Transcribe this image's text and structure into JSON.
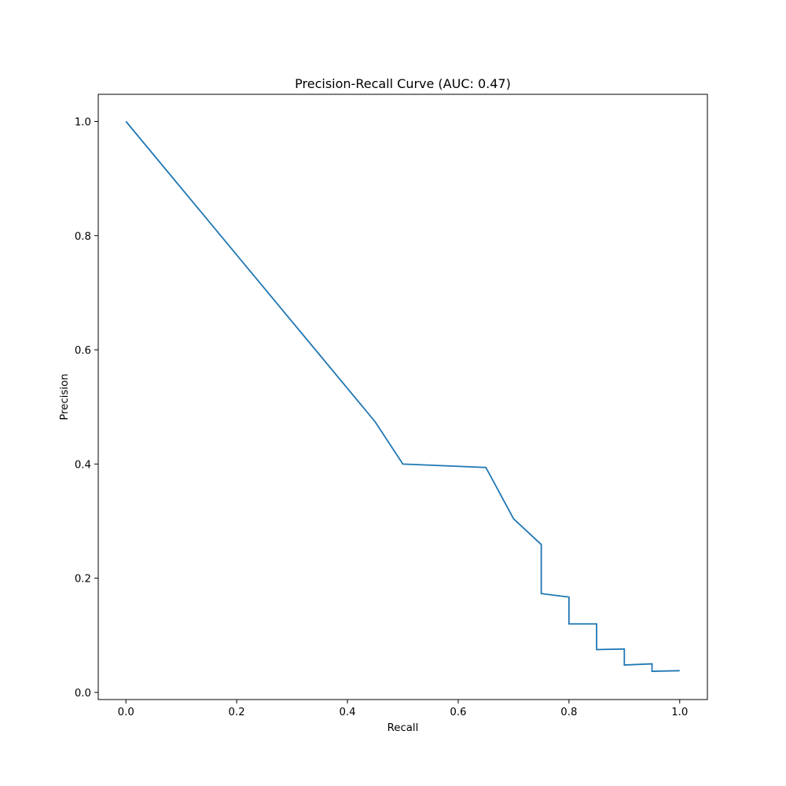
{
  "chart_data": {
    "type": "line",
    "title": "Precision-Recall Curve (AUC: 0.47)",
    "xlabel": "Recall",
    "ylabel": "Precision",
    "xlim": [
      -0.05,
      1.05
    ],
    "ylim": [
      -0.0125,
      1.0475
    ],
    "xticks": [
      0.0,
      0.2,
      0.4,
      0.6,
      0.8,
      1.0
    ],
    "xtick_labels": [
      "0.0",
      "0.2",
      "0.4",
      "0.6",
      "0.8",
      "1.0"
    ],
    "yticks": [
      0.0,
      0.2,
      0.4,
      0.6,
      0.8,
      1.0
    ],
    "ytick_labels": [
      "0.0",
      "0.2",
      "0.4",
      "0.6",
      "0.8",
      "1.0"
    ],
    "grid": false,
    "color": "#1f77b4",
    "series": [
      {
        "x": [
          0.0,
          0.45,
          0.5,
          0.65,
          0.7,
          0.75,
          0.75,
          0.8,
          0.8,
          0.85,
          0.85,
          0.9,
          0.9,
          0.95,
          0.95,
          1.0
        ],
        "y": [
          1.0,
          0.474,
          0.4,
          0.394,
          0.304,
          0.259,
          0.173,
          0.167,
          0.12,
          0.12,
          0.075,
          0.076,
          0.048,
          0.05,
          0.037,
          0.038
        ]
      }
    ]
  }
}
